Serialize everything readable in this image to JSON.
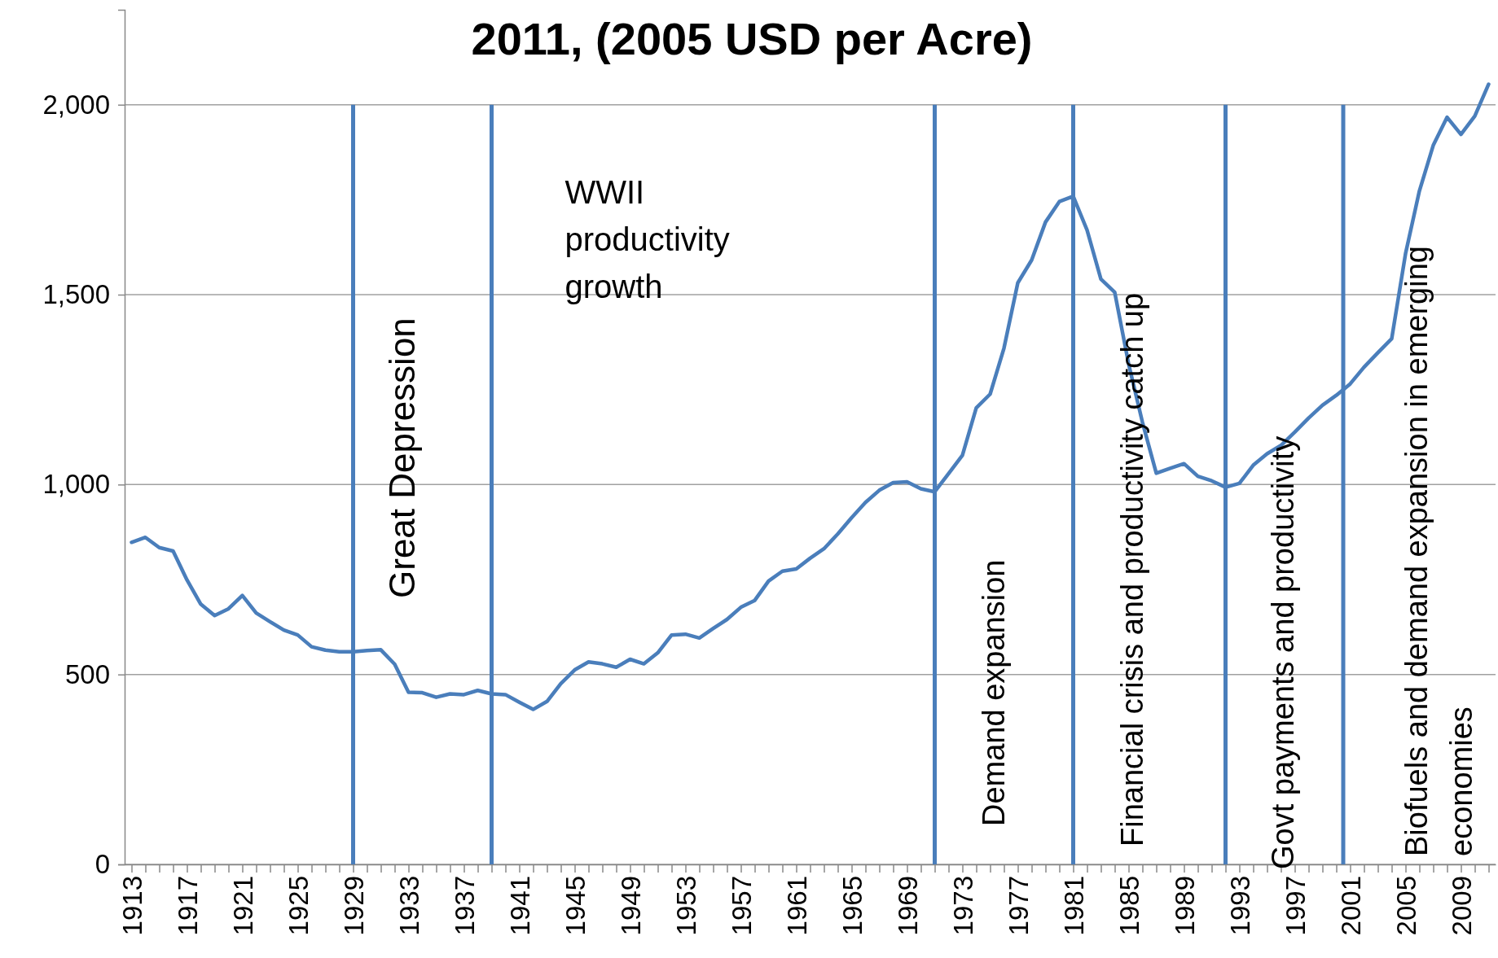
{
  "chart_data": {
    "type": "line",
    "title": "2011, (2005 USD per Acre)",
    "x": [
      1913,
      1914,
      1915,
      1916,
      1917,
      1918,
      1919,
      1920,
      1921,
      1922,
      1923,
      1924,
      1925,
      1926,
      1927,
      1928,
      1929,
      1930,
      1931,
      1932,
      1933,
      1934,
      1935,
      1936,
      1937,
      1938,
      1939,
      1940,
      1941,
      1942,
      1943,
      1944,
      1945,
      1946,
      1947,
      1948,
      1949,
      1950,
      1951,
      1952,
      1953,
      1954,
      1955,
      1956,
      1957,
      1958,
      1959,
      1960,
      1961,
      1962,
      1963,
      1964,
      1965,
      1966,
      1967,
      1968,
      1969,
      1970,
      1971,
      1972,
      1973,
      1974,
      1975,
      1976,
      1977,
      1978,
      1979,
      1980,
      1981,
      1982,
      1983,
      1984,
      1985,
      1986,
      1987,
      1988,
      1989,
      1990,
      1991,
      1992,
      1993,
      1994,
      1995,
      1996,
      1997,
      1998,
      1999,
      2000,
      2001,
      2002,
      2003,
      2004,
      2005,
      2006,
      2007,
      2008,
      2009,
      2010,
      2011
    ],
    "series": [
      {
        "color": "#4a7ebb",
        "values": [
          848,
          861,
          834,
          825,
          749,
          685,
          655,
          673,
          708,
          662,
          639,
          617,
          604,
          573,
          564,
          560,
          560,
          563,
          565,
          527,
          453,
          452,
          440,
          449,
          447,
          458,
          449,
          447,
          427,
          408,
          429,
          476,
          512,
          533,
          528,
          519,
          540,
          528,
          557,
          604,
          606,
          596,
          621,
          645,
          677,
          695,
          746,
          772,
          778,
          806,
          831,
          870,
          913,
          953,
          985,
          1005,
          1007,
          989,
          981,
          1029,
          1077,
          1202,
          1238,
          1359,
          1531,
          1591,
          1691,
          1745,
          1759,
          1670,
          1541,
          1506,
          1318,
          1164,
          1030,
          1043,
          1055,
          1022,
          1010,
          993,
          1003,
          1051,
          1081,
          1103,
          1138,
          1175,
          1209,
          1235,
          1265,
          1309,
          1347,
          1384,
          1608,
          1773,
          1893,
          1967,
          1922,
          1970,
          2054
        ]
      }
    ],
    "xlim": [
      1912.5,
      2011.5
    ],
    "xticks": [
      1913,
      {
        "value": 1914,
        "label": null
      },
      {
        "value": 1915,
        "label": null
      },
      {
        "value": 1916,
        "label": null
      },
      1917,
      {
        "value": 1918,
        "label": null
      },
      {
        "value": 1919,
        "label": null
      },
      {
        "value": 1920,
        "label": null
      },
      1921,
      {
        "value": 1922,
        "label": null
      },
      {
        "value": 1923,
        "label": null
      },
      {
        "value": 1924,
        "label": null
      },
      1925,
      {
        "value": 1926,
        "label": null
      },
      {
        "value": 1927,
        "label": null
      },
      {
        "value": 1928,
        "label": null
      },
      1929,
      {
        "value": 1930,
        "label": null
      },
      {
        "value": 1931,
        "label": null
      },
      {
        "value": 1932,
        "label": null
      },
      1933,
      {
        "value": 1934,
        "label": null
      },
      {
        "value": 1935,
        "label": null
      },
      {
        "value": 1936,
        "label": null
      },
      1937,
      {
        "value": 1938,
        "label": null
      },
      {
        "value": 1939,
        "label": null
      },
      {
        "value": 1940,
        "label": null
      },
      1941,
      {
        "value": 1942,
        "label": null
      },
      {
        "value": 1943,
        "label": null
      },
      {
        "value": 1944,
        "label": null
      },
      1945,
      {
        "value": 1946,
        "label": null
      },
      {
        "value": 1947,
        "label": null
      },
      {
        "value": 1948,
        "label": null
      },
      1949,
      {
        "value": 1950,
        "label": null
      },
      {
        "value": 1951,
        "label": null
      },
      {
        "value": 1952,
        "label": null
      },
      1953,
      {
        "value": 1954,
        "label": null
      },
      {
        "value": 1955,
        "label": null
      },
      {
        "value": 1956,
        "label": null
      },
      1957,
      {
        "value": 1958,
        "label": null
      },
      {
        "value": 1959,
        "label": null
      },
      {
        "value": 1960,
        "label": null
      },
      1961,
      {
        "value": 1962,
        "label": null
      },
      {
        "value": 1963,
        "label": null
      },
      {
        "value": 1964,
        "label": null
      },
      1965,
      {
        "value": 1966,
        "label": null
      },
      {
        "value": 1967,
        "label": null
      },
      {
        "value": 1968,
        "label": null
      },
      1969,
      {
        "value": 1970,
        "label": null
      },
      {
        "value": 1971,
        "label": null
      },
      {
        "value": 1972,
        "label": null
      },
      1973,
      {
        "value": 1974,
        "label": null
      },
      {
        "value": 1975,
        "label": null
      },
      {
        "value": 1976,
        "label": null
      },
      1977,
      {
        "value": 1978,
        "label": null
      },
      {
        "value": 1979,
        "label": null
      },
      {
        "value": 1980,
        "label": null
      },
      1981,
      {
        "value": 1982,
        "label": null
      },
      {
        "value": 1983,
        "label": null
      },
      {
        "value": 1984,
        "label": null
      },
      1985,
      {
        "value": 1986,
        "label": null
      },
      {
        "value": 1987,
        "label": null
      },
      {
        "value": 1988,
        "label": null
      },
      1989,
      {
        "value": 1990,
        "label": null
      },
      {
        "value": 1991,
        "label": null
      },
      {
        "value": 1992,
        "label": null
      },
      1993,
      {
        "value": 1994,
        "label": null
      },
      {
        "value": 1995,
        "label": null
      },
      {
        "value": 1996,
        "label": null
      },
      1997,
      {
        "value": 1998,
        "label": null
      },
      {
        "value": 1999,
        "label": null
      },
      {
        "value": 2000,
        "label": null
      },
      2001,
      {
        "value": 2002,
        "label": null
      },
      {
        "value": 2003,
        "label": null
      },
      {
        "value": 2004,
        "label": null
      },
      2005,
      {
        "value": 2006,
        "label": null
      },
      {
        "value": 2007,
        "label": null
      },
      {
        "value": 2008,
        "label": null
      },
      2009,
      {
        "value": 2010,
        "label": null
      },
      {
        "value": 2011,
        "label": null
      }
    ],
    "ylim": [
      0,
      2250
    ],
    "yticks": [
      0,
      500,
      {
        "value": 1000,
        "label": "1,000"
      },
      {
        "value": 1500,
        "label": "1,500"
      },
      {
        "value": 2000,
        "label": "2,000"
      }
    ],
    "grid": "y",
    "ref_lines": [
      {
        "axis": "x",
        "value": 1929,
        "label": "Great Depression",
        "color": "#4a7ebb"
      },
      {
        "axis": "x",
        "value": 1939,
        "label": "WWII productivity growth",
        "color": "#4a7ebb"
      },
      {
        "axis": "x",
        "value": 1971,
        "label": "Demand expansion",
        "color": "#4a7ebb"
      },
      {
        "axis": "x",
        "value": 1981,
        "label": "Financial crisis and productivity catch up",
        "color": "#4a7ebb"
      },
      {
        "axis": "x",
        "value": 1992,
        "label": "Govt payments and productivity",
        "color": "#4a7ebb"
      },
      {
        "axis": "x",
        "value": 2000.5,
        "label": "Biofuels and demand expansion in emerging economies",
        "color": "#4a7ebb"
      }
    ]
  }
}
